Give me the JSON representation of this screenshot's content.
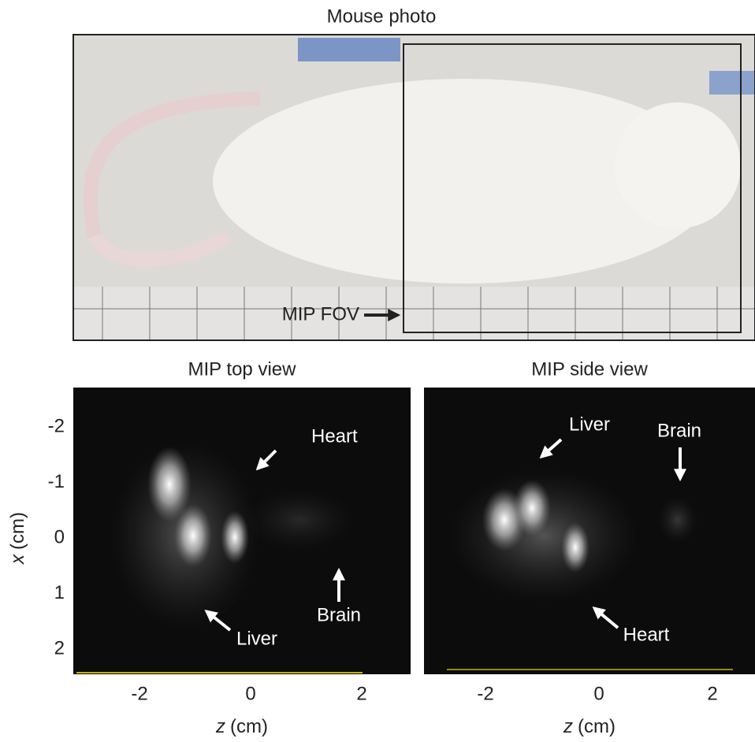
{
  "title": "Mouse photo",
  "fov_label": "MIP FOV",
  "y_axis": {
    "symbol": "x",
    "unit": "(cm)",
    "ticks": [
      -2,
      -1,
      0,
      1,
      2
    ]
  },
  "panels": [
    {
      "title": "MIP top view",
      "annotations": [
        "Heart",
        "Liver",
        "Brain"
      ],
      "x_symbol": "z",
      "x_unit": "(cm)",
      "xticks": [
        -2,
        0,
        2
      ]
    },
    {
      "title": "MIP side view",
      "annotations": [
        "Liver",
        "Brain",
        "Heart"
      ],
      "x_symbol": "z",
      "x_unit": "(cm)",
      "xticks": [
        -2,
        0,
        2
      ]
    }
  ]
}
